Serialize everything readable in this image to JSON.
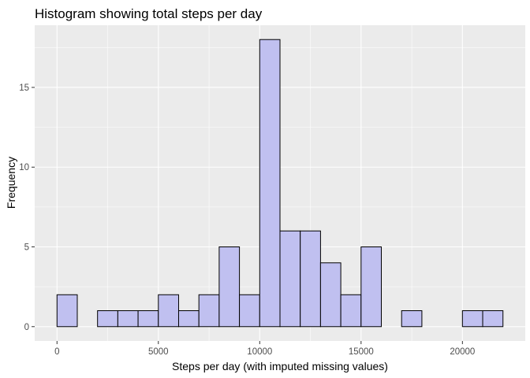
{
  "chart_data": {
    "type": "bar",
    "title": "Histogram showing total steps per day",
    "xlabel": "Steps per day (with imputed missing values)",
    "ylabel": "Frequency",
    "bin_width": 1000,
    "bin_start": 0,
    "values": [
      2,
      0,
      1,
      1,
      1,
      2,
      1,
      2,
      5,
      2,
      18,
      6,
      6,
      4,
      2,
      5,
      0,
      1,
      0,
      0,
      1,
      1
    ],
    "xlim": [
      -1100,
      23100
    ],
    "ylim": [
      -0.9,
      18.9
    ],
    "x_ticks": [
      0,
      5000,
      10000,
      15000,
      20000
    ],
    "x_tick_labels": [
      "0",
      "5000",
      "10000",
      "15000",
      "20000"
    ],
    "x_minor_ticks": [
      2500,
      7500,
      12500,
      17500
    ],
    "y_ticks": [
      0,
      5,
      10,
      15
    ],
    "y_tick_labels": [
      "0",
      "5",
      "10",
      "15"
    ],
    "y_minor_ticks": [
      2.5,
      7.5,
      12.5,
      17.5
    ],
    "grid": true,
    "bar_fill": "#c0c0f0",
    "bar_stroke": "#000000",
    "panel_background": "#ebebeb"
  }
}
